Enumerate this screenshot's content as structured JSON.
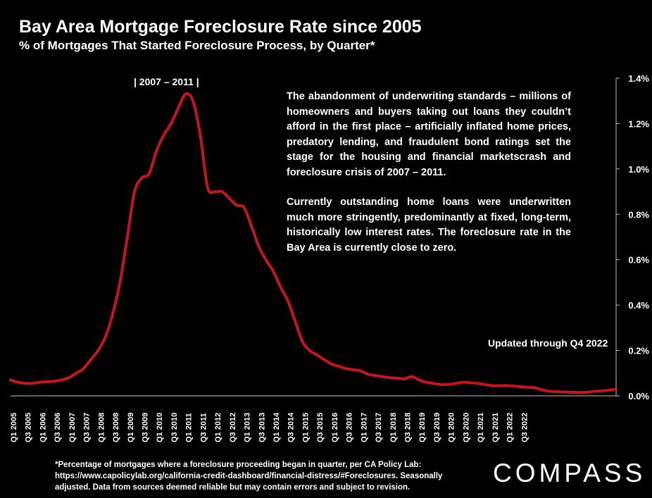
{
  "chart_data": {
    "type": "line",
    "title": "Bay Area Mortgage Foreclosure Rate since 2005",
    "subtitle": "% of Mortgages That Started Foreclosure Process, by Quarter*",
    "period_label": "|    2007 – 2011    |",
    "annotation": [
      "The abandonment of underwriting standards – millions of homeowners and buyers taking out loans they couldn’t afford in the first place – artificially inflated home prices, predatory lending, and fraudulent bond ratings set the stage for the housing and financial marketscrash and foreclosure crisis of 2007 – 2011.",
      "Currently outstanding home loans were underwritten much more stringently, predominantly at fixed, long-term, historically low interest rates. The foreclosure rate in the Bay Area is currently close to zero."
    ],
    "updated_note": "Updated through Q4 2022",
    "y_axis": {
      "min": 0,
      "max": 1.4,
      "ticks": [
        0,
        0.2,
        0.4,
        0.6,
        0.8,
        1.0,
        1.2,
        1.4
      ],
      "tick_labels": [
        "0.0%",
        "0.2%",
        "0.4%",
        "0.6%",
        "0.8%",
        "1.0%",
        "1.2%",
        "1.4%"
      ],
      "position": "right"
    },
    "x_tick_labels": [
      "Q1 2005",
      "Q3 2005",
      "Q1 2006",
      "Q3 2006",
      "Q1 2007",
      "Q3 2007",
      "Q1 2008",
      "Q3 2008",
      "Q1 2009",
      "Q3 2009",
      "Q1 2010",
      "Q3 2010",
      "Q1 2011",
      "Q3 2011",
      "Q1 2012",
      "Q3 2012",
      "Q1 2013",
      "Q3 2013",
      "Q1 2014",
      "Q3 2014",
      "Q1 2015",
      "Q3 2015",
      "Q1 2016",
      "Q3 2016",
      "Q1 2017",
      "Q3 2017",
      "Q1 2018",
      "Q3 2018",
      "Q1 2019",
      "Q3 2019",
      "Q1 2020",
      "Q3 2020",
      "Q1 2021",
      "Q3 2021",
      "Q1 2022",
      "Q3 2022"
    ],
    "series": [
      {
        "color": "#c8141e",
        "values": [
          0.07,
          0.06,
          0.055,
          0.055,
          0.06,
          0.062,
          0.065,
          0.07,
          0.08,
          0.1,
          0.12,
          0.16,
          0.2,
          0.26,
          0.36,
          0.5,
          0.7,
          0.9,
          0.96,
          0.98,
          1.08,
          1.15,
          1.2,
          1.27,
          1.33,
          1.3,
          1.15,
          0.92,
          0.9,
          0.9,
          0.87,
          0.84,
          0.83,
          0.75,
          0.66,
          0.6,
          0.55,
          0.48,
          0.42,
          0.33,
          0.24,
          0.2,
          0.18,
          0.16,
          0.14,
          0.13,
          0.12,
          0.115,
          0.11,
          0.095,
          0.09,
          0.085,
          0.08,
          0.078,
          0.075,
          0.085,
          0.07,
          0.06,
          0.055,
          0.05,
          0.05,
          0.055,
          0.06,
          0.058,
          0.055,
          0.05,
          0.045,
          0.045,
          0.045,
          0.043,
          0.04,
          0.038,
          0.035,
          0.025,
          0.02,
          0.018,
          0.017,
          0.016,
          0.015,
          0.016,
          0.02,
          0.022,
          0.025,
          0.03
        ]
      }
    ],
    "grid": false,
    "legend": "none"
  },
  "footnote": "*Percentage of mortgages where a foreclosure proceeding began in quarter, per CA Policy Lab: https://www.capolicylab.org/california-credit-dashboard/financial-distress/#Foreclosures.  Seasonally adjusted. Data from sources deemed reliable but may contain errors and subject to revision.",
  "logo": "COMPASS"
}
